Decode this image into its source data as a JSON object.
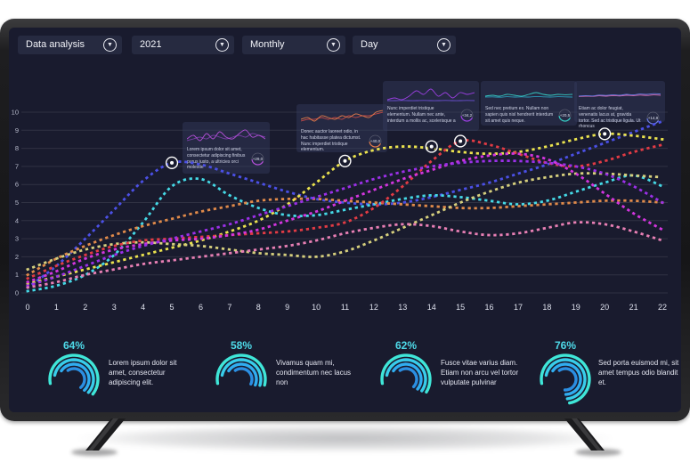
{
  "colors": {
    "screen_bg": "#191b2e",
    "accent_cyan": "#4ed9e8",
    "grid": "rgba(255,255,255,0.10)",
    "marker": "#ffffff"
  },
  "icons": {
    "dropdown": "chevron-down-circle-icon"
  },
  "toolbar": {
    "dropdowns": [
      {
        "label": "Data analysis"
      },
      {
        "label": "2021"
      },
      {
        "label": "Monthly"
      },
      {
        "label": "Day"
      }
    ]
  },
  "chart_data": {
    "type": "line",
    "title": "",
    "xlabel": "",
    "ylabel": "",
    "x": [
      0,
      1,
      2,
      3,
      4,
      5,
      6,
      7,
      8,
      9,
      10,
      11,
      12,
      13,
      14,
      15,
      16,
      17,
      18,
      19,
      20,
      21,
      22
    ],
    "xticks": [
      0,
      1,
      2,
      3,
      4,
      5,
      6,
      7,
      8,
      9,
      10,
      11,
      12,
      13,
      14,
      15,
      16,
      17,
      18,
      19,
      20,
      21,
      22
    ],
    "yticks": [
      0,
      1,
      2,
      3,
      4,
      5,
      6,
      7,
      8,
      9,
      10
    ],
    "ylim": [
      0,
      10
    ],
    "grid": true,
    "legend": "none",
    "style": "dotted",
    "series": [
      {
        "name": "blue",
        "color": "#4b50e6",
        "values": [
          0.3,
          1.5,
          3.0,
          4.6,
          6.2,
          7.2,
          7.1,
          6.6,
          6.1,
          5.6,
          5.2,
          5.0,
          4.9,
          5.0,
          5.3,
          5.7,
          6.1,
          6.6,
          7.1,
          7.7,
          8.3,
          8.9,
          9.5
        ]
      },
      {
        "name": "cyan",
        "color": "#45d9e6",
        "values": [
          0.1,
          0.4,
          1.0,
          2.1,
          3.9,
          5.9,
          6.3,
          5.4,
          4.7,
          4.3,
          4.3,
          4.6,
          4.9,
          5.2,
          5.4,
          5.3,
          5.1,
          4.9,
          5.1,
          5.6,
          6.1,
          6.5,
          5.9
        ]
      },
      {
        "name": "orange",
        "color": "#e08a4a",
        "values": [
          1.0,
          1.9,
          2.6,
          3.2,
          3.7,
          4.1,
          4.5,
          4.8,
          5.1,
          5.2,
          5.2,
          5.1,
          5.0,
          4.9,
          4.8,
          4.7,
          4.7,
          4.8,
          4.9,
          5.0,
          5.1,
          5.1,
          5.0
        ]
      },
      {
        "name": "yellow",
        "color": "#eae24e",
        "values": [
          0.5,
          0.9,
          1.3,
          1.7,
          2.1,
          2.5,
          2.9,
          3.4,
          4.0,
          4.9,
          6.1,
          7.3,
          7.9,
          8.1,
          8.0,
          7.8,
          7.7,
          7.8,
          8.1,
          8.5,
          8.8,
          8.7,
          8.5
        ]
      },
      {
        "name": "khaki",
        "color": "#d6cf7d",
        "values": [
          1.3,
          1.9,
          2.4,
          2.7,
          2.8,
          2.7,
          2.6,
          2.4,
          2.2,
          2.1,
          2.0,
          2.3,
          2.9,
          3.6,
          4.3,
          5.0,
          5.6,
          6.1,
          6.4,
          6.6,
          6.6,
          6.5,
          6.4
        ]
      },
      {
        "name": "red",
        "color": "#e23b44",
        "values": [
          0.8,
          1.5,
          2.1,
          2.6,
          2.9,
          3.0,
          3.1,
          3.2,
          3.3,
          3.4,
          3.6,
          3.9,
          4.7,
          5.9,
          7.3,
          8.4,
          8.2,
          7.7,
          7.2,
          7.0,
          7.3,
          7.8,
          8.2
        ]
      },
      {
        "name": "magenta",
        "color": "#d335de",
        "values": [
          0.6,
          1.2,
          1.9,
          2.4,
          2.7,
          2.9,
          3.0,
          3.2,
          3.5,
          4.0,
          4.5,
          5.1,
          5.7,
          6.3,
          6.8,
          7.3,
          7.6,
          7.7,
          7.4,
          6.6,
          5.5,
          4.4,
          3.5
        ]
      },
      {
        "name": "purple",
        "color": "#9b30e8",
        "values": [
          0.4,
          0.9,
          1.5,
          2.1,
          2.6,
          3.0,
          3.4,
          3.8,
          4.3,
          4.8,
          5.3,
          5.8,
          6.3,
          6.7,
          7.0,
          7.2,
          7.3,
          7.3,
          7.2,
          7.0,
          6.6,
          5.9,
          5.0
        ]
      },
      {
        "name": "pink",
        "color": "#e87fb4",
        "values": [
          0.3,
          0.6,
          1.0,
          1.3,
          1.6,
          1.8,
          2.0,
          2.2,
          2.4,
          2.6,
          2.9,
          3.3,
          3.6,
          3.8,
          3.7,
          3.4,
          3.2,
          3.3,
          3.6,
          3.9,
          3.8,
          3.4,
          2.9
        ]
      }
    ],
    "markers": [
      {
        "x": 5,
        "y": 7.2
      },
      {
        "x": 11,
        "y": 7.3
      },
      {
        "x": 14,
        "y": 8.1
      },
      {
        "x": 15,
        "y": 8.4
      },
      {
        "x": 20,
        "y": 8.8
      }
    ]
  },
  "tooltips": [
    {
      "text": "Lorem ipsum dolor sit amet, consectetur adipiscing finibus purus justo, a ultricies orci molestie",
      "value": "+29,0",
      "color": "#b44fd8",
      "color2": "#7a3fa8",
      "spark": [
        3,
        5,
        2,
        6,
        3,
        7,
        4,
        3,
        6,
        8,
        4,
        5,
        3
      ],
      "spark2": [
        2,
        3,
        4,
        3,
        5,
        4,
        3,
        4,
        5,
        4,
        6,
        5,
        4
      ]
    },
    {
      "text": "Donec auctor laoreet odio, in hac habitasse platea dictumst. Nunc imperdiet tristique elementum.",
      "value": "+40,0",
      "color": "#e07a4a",
      "color2": "#c04848",
      "spark": [
        4,
        5,
        3,
        6,
        5,
        4,
        6,
        5,
        7,
        6,
        5,
        8,
        9
      ],
      "spark2": [
        3,
        4,
        4,
        5,
        4,
        5,
        4,
        6,
        5,
        6,
        6,
        7,
        8
      ]
    },
    {
      "text": "Nunc imperdiet tristique elementum. Nullam nec ante, interdum a mollis ac, scelerisque a",
      "value": "+34,2",
      "color": "#9a3fe0",
      "color2": "#6a4fd0",
      "spark": [
        2,
        3,
        2,
        4,
        7,
        5,
        8,
        4,
        6,
        3,
        6,
        5,
        6
      ],
      "spark2": [
        1.5,
        1.5,
        1.6,
        1.5,
        1.5,
        1.6,
        1.5,
        1.5,
        1.6,
        1.5,
        1.5,
        1.6,
        1.5
      ]
    },
    {
      "text": "Sed nec pretium ex. Nullam non sapien quis nisl hendrerit interdum sit amet quis neque.",
      "value": "+20,5",
      "color": "#35c8c0",
      "color2": "#2a9ab8",
      "spark": [
        4,
        4.5,
        4,
        5,
        4.5,
        4,
        5,
        6,
        5,
        4.5,
        5,
        4.8,
        5
      ],
      "spark2": [
        3.5,
        3.6,
        3.4,
        3.7,
        3.5,
        3.6,
        3.5,
        3.8,
        3.6,
        3.5,
        3.7,
        3.6,
        3.5
      ]
    },
    {
      "text": "Etiam ac dolor feugiat, venenatis lacus at, gravida tortor. Sed ac tristique ligula. Ut rhoncus",
      "value": "+14,8",
      "color": "#6a7ae0",
      "color2": "#d86ab0",
      "spark": [
        4,
        4.3,
        4.1,
        4.6,
        4.4,
        4.8,
        4.5,
        5,
        4.7,
        5.2,
        5,
        5.4,
        5.2
      ],
      "spark2": [
        3.8,
        4,
        3.9,
        4.2,
        4,
        4.3,
        4.1,
        4.5,
        4.3,
        4.6,
        4.4,
        4.7,
        4.5
      ]
    }
  ],
  "stats": [
    {
      "pct": "64%",
      "value": 64,
      "text": "Lorem ipsum dolor sit amet, consectetur adipiscing elit."
    },
    {
      "pct": "58%",
      "value": 58,
      "text": "Vivamus quam mi, condimentum nec lacus non"
    },
    {
      "pct": "62%",
      "value": 62,
      "text": "Fusce vitae varius diam. Etiam non arcu vel tortor vulputate pulvinar"
    },
    {
      "pct": "76%",
      "value": 76,
      "text": "Sed porta euismod mi, sit amet tempus odio blandit et."
    }
  ]
}
